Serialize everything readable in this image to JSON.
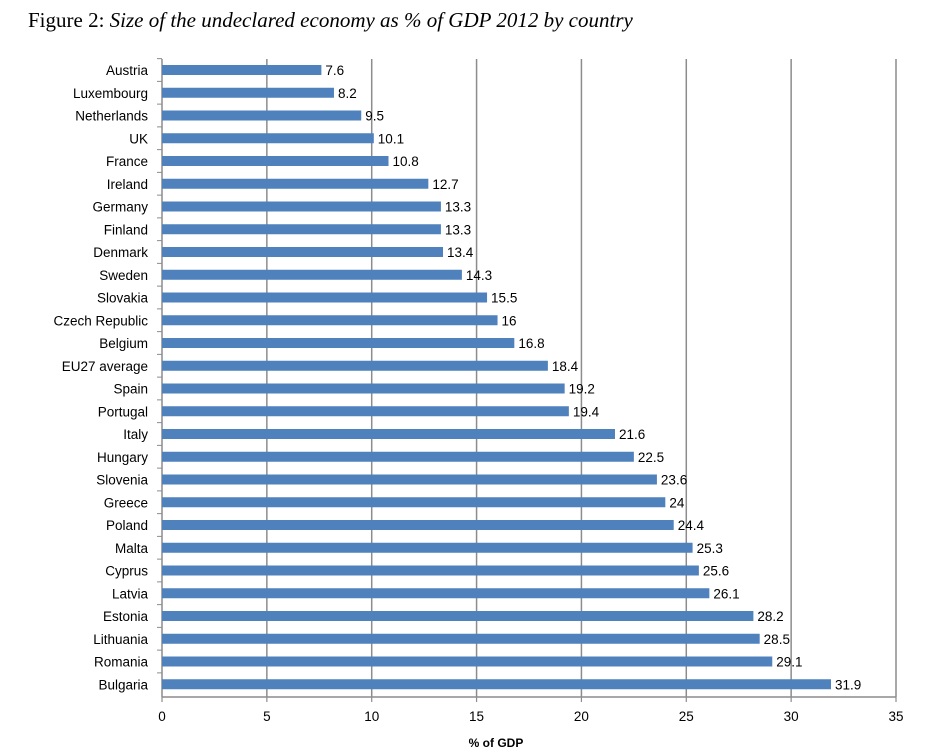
{
  "figure": {
    "label": "Figure 2: ",
    "caption": "Size of the undeclared economy as % of GDP 2012 by country"
  },
  "chart_data": {
    "type": "bar",
    "orientation": "horizontal",
    "title": "Figure 2: Size of the undeclared economy as % of GDP 2012 by country",
    "xlabel": "% of GDP",
    "ylabel": "",
    "xlim": [
      0,
      35
    ],
    "xticks": [
      0,
      5,
      10,
      15,
      20,
      25,
      30,
      35
    ],
    "grid": "vertical",
    "legend": "none",
    "bar_color": "#4F81BD",
    "categories": [
      "Austria",
      "Luxembourg",
      "Netherlands",
      "UK",
      "France",
      "Ireland",
      "Germany",
      "Finland",
      "Denmark",
      "Sweden",
      "Slovakia",
      "Czech Republic",
      "Belgium",
      "EU27 average",
      "Spain",
      "Portugal",
      "Italy",
      "Hungary",
      "Slovenia",
      "Greece",
      "Poland",
      "Malta",
      "Cyprus",
      "Latvia",
      "Estonia",
      "Lithuania",
      "Romania",
      "Bulgaria"
    ],
    "values": [
      7.6,
      8.2,
      9.5,
      10.1,
      10.8,
      12.7,
      13.3,
      13.3,
      13.4,
      14.3,
      15.5,
      16,
      16.8,
      18.4,
      19.2,
      19.4,
      21.6,
      22.5,
      23.6,
      24,
      24.4,
      25.3,
      25.6,
      26.1,
      28.2,
      28.5,
      29.1,
      31.9
    ]
  }
}
